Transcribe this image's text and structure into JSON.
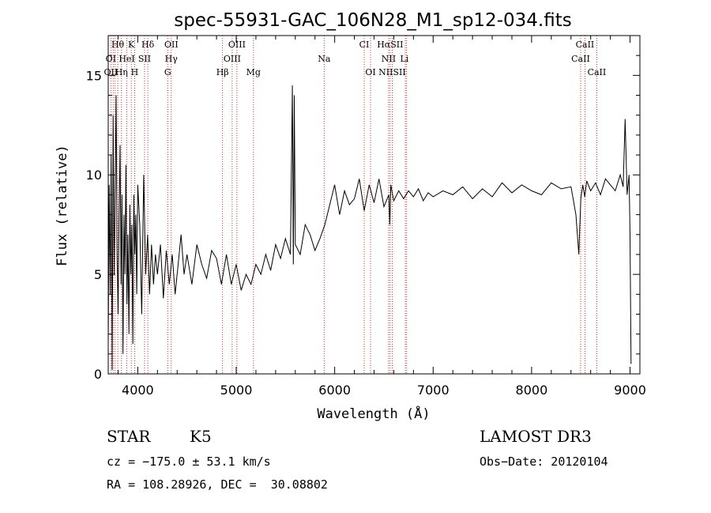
{
  "chart_data": {
    "type": "line",
    "title": "spec-55931-GAC_106N28_M1_sp12-034.fits",
    "xlabel": "Wavelength (Å)",
    "ylabel": "Flux (relative)",
    "xlim": [
      3700,
      9100
    ],
    "ylim": [
      0,
      17
    ],
    "x_ticks": [
      4000,
      5000,
      6000,
      7000,
      8000,
      9000
    ],
    "y_ticks": [
      0,
      5,
      10,
      15
    ],
    "grid": false,
    "series": [
      {
        "name": "flux",
        "x": [
          3700,
          3710,
          3720,
          3730,
          3740,
          3750,
          3760,
          3770,
          3780,
          3790,
          3800,
          3810,
          3820,
          3830,
          3840,
          3850,
          3860,
          3870,
          3880,
          3890,
          3900,
          3910,
          3920,
          3930,
          3940,
          3950,
          3960,
          3970,
          3980,
          3990,
          4000,
          4020,
          4040,
          4060,
          4080,
          4100,
          4120,
          4140,
          4160,
          4180,
          4200,
          4230,
          4260,
          4290,
          4320,
          4350,
          4380,
          4410,
          4440,
          4470,
          4500,
          4550,
          4600,
          4650,
          4700,
          4750,
          4800,
          4850,
          4900,
          4950,
          5000,
          5050,
          5100,
          5150,
          5200,
          5250,
          5300,
          5350,
          5400,
          5450,
          5500,
          5550,
          5570,
          5580,
          5590,
          5600,
          5650,
          5700,
          5750,
          5800,
          5850,
          5900,
          5950,
          6000,
          6050,
          6100,
          6150,
          6200,
          6250,
          6300,
          6350,
          6400,
          6450,
          6500,
          6550,
          6560,
          6570,
          6600,
          6650,
          6700,
          6750,
          6800,
          6850,
          6900,
          6950,
          7000,
          7100,
          7200,
          7300,
          7400,
          7500,
          7600,
          7700,
          7800,
          7900,
          8000,
          8100,
          8200,
          8300,
          8400,
          8450,
          8480,
          8500,
          8520,
          8540,
          8560,
          8600,
          8650,
          8700,
          8750,
          8800,
          8850,
          8900,
          8930,
          8950,
          8970,
          8990,
          9000,
          9010
        ],
        "y": [
          1.5,
          9.5,
          4.0,
          11.0,
          0.2,
          13.0,
          5.0,
          9.0,
          14.0,
          6.0,
          3.0,
          8.0,
          11.5,
          4.5,
          9.0,
          1.0,
          8.0,
          5.0,
          10.5,
          3.5,
          7.0,
          2.0,
          8.5,
          5.0,
          7.5,
          1.5,
          9.0,
          6.0,
          8.0,
          4.0,
          9.5,
          7.5,
          3.0,
          10.0,
          5.0,
          7.0,
          4.0,
          6.5,
          4.5,
          6.0,
          5.0,
          6.5,
          3.8,
          6.2,
          4.5,
          6.0,
          4.0,
          5.5,
          7.0,
          5.0,
          6.0,
          4.5,
          6.5,
          5.5,
          4.8,
          6.2,
          5.8,
          4.5,
          6.0,
          4.5,
          5.5,
          4.2,
          5.0,
          4.5,
          5.5,
          5.0,
          6.0,
          5.2,
          6.5,
          5.8,
          6.8,
          6.0,
          14.5,
          5.5,
          14.0,
          6.5,
          6.0,
          7.5,
          7.0,
          6.2,
          6.8,
          7.5,
          8.5,
          9.5,
          8.0,
          9.2,
          8.5,
          8.8,
          9.8,
          8.2,
          9.5,
          8.6,
          9.8,
          8.4,
          9.0,
          7.5,
          9.5,
          8.7,
          9.2,
          8.8,
          9.2,
          8.9,
          9.3,
          8.7,
          9.1,
          8.9,
          9.2,
          9.0,
          9.4,
          8.8,
          9.3,
          8.9,
          9.6,
          9.1,
          9.5,
          9.2,
          9.0,
          9.6,
          9.3,
          9.4,
          8.0,
          6.0,
          8.8,
          9.5,
          8.9,
          9.7,
          9.2,
          9.6,
          9.0,
          9.8,
          9.5,
          9.2,
          10.0,
          9.4,
          12.8,
          9.0,
          10.0,
          7.0,
          0.5
        ]
      }
    ],
    "line_markers": [
      {
        "label": "Hθ",
        "x": 3797,
        "row": 1
      },
      {
        "label": "K",
        "x": 3934,
        "row": 1
      },
      {
        "label": "Hδ",
        "x": 4102,
        "row": 1
      },
      {
        "label": "OII",
        "x": 4341,
        "row": 1
      },
      {
        "label": "OIII",
        "x": 5007,
        "row": 1
      },
      {
        "label": "CI",
        "x": 6300,
        "row": 1
      },
      {
        "label": "HαSII",
        "x": 6563,
        "row": 1
      },
      {
        "label": "CaII",
        "x": 8542,
        "row": 1
      },
      {
        "label": "OI",
        "x": 3727,
        "row": 2
      },
      {
        "label": "HeI",
        "x": 3889,
        "row": 2
      },
      {
        "label": "SII",
        "x": 4069,
        "row": 2
      },
      {
        "label": "Hγ",
        "x": 4340,
        "row": 2
      },
      {
        "label": "OIII",
        "x": 4959,
        "row": 2
      },
      {
        "label": "Na",
        "x": 5893,
        "row": 2
      },
      {
        "label": "NII",
        "x": 6548,
        "row": 2
      },
      {
        "label": "Li",
        "x": 6708,
        "row": 2
      },
      {
        "label": "CaII",
        "x": 8498,
        "row": 2
      },
      {
        "label": "OII",
        "x": 3727,
        "row": 3
      },
      {
        "label": "Hη",
        "x": 3835,
        "row": 3
      },
      {
        "label": "H",
        "x": 3968,
        "row": 3
      },
      {
        "label": "G",
        "x": 4304,
        "row": 3
      },
      {
        "label": "Hβ",
        "x": 4861,
        "row": 3
      },
      {
        "label": "Mg",
        "x": 5175,
        "row": 3
      },
      {
        "label": "OI",
        "x": 6364,
        "row": 3
      },
      {
        "label": "NIISII",
        "x": 6584,
        "row": 3
      },
      {
        "label": "CaII",
        "x": 8662,
        "row": 3
      }
    ],
    "red_lines": [
      3727,
      3750,
      3770,
      3797,
      3835,
      3889,
      3934,
      3968,
      4069,
      4102,
      4304,
      4340,
      4861,
      4959,
      5007,
      5175,
      5893,
      6300,
      6364,
      6548,
      6563,
      6584,
      6717,
      6731,
      8498,
      8542,
      8662
    ]
  },
  "info": {
    "class": "STAR",
    "subclass": "K5",
    "survey": "LAMOST DR3",
    "cz": "cz = −175.0 ± 53.1 km/s",
    "obs_date": "Obs−Date: 20120104",
    "radec": "RA = 108.28926, DEC =  30.08802"
  },
  "colors": {
    "line": "#000000",
    "marker": "#cc0000",
    "background": "#ffffff"
  }
}
